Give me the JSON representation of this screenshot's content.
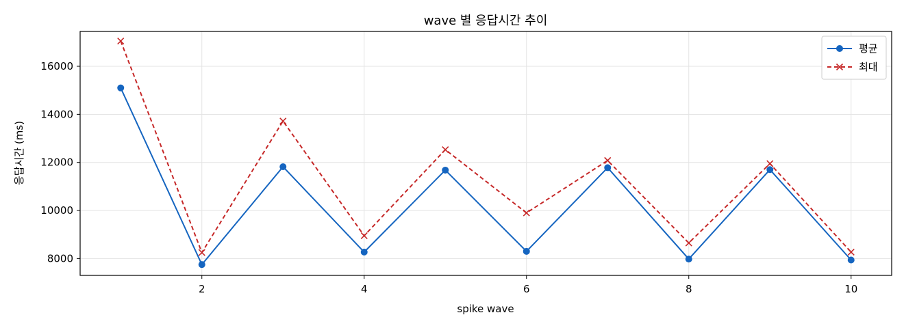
{
  "chart_data": {
    "type": "line",
    "title": "wave 별 응답시간 추이",
    "xlabel": "spike wave",
    "ylabel": "응답시간 (ms)",
    "x": [
      1,
      2,
      3,
      4,
      5,
      6,
      7,
      8,
      9,
      10
    ],
    "xlim": [
      0.5,
      10.5
    ],
    "ylim": [
      7300,
      17450
    ],
    "xticks": [
      2,
      4,
      6,
      8,
      10
    ],
    "yticks": [
      8000,
      10000,
      12000,
      14000,
      16000
    ],
    "grid": true,
    "legend_position": "top-right",
    "series": [
      {
        "name": "평균",
        "color": "#1565c0",
        "style": "solid",
        "marker": "circle",
        "values": [
          15100,
          7750,
          11820,
          8270,
          11680,
          8300,
          11780,
          7980,
          11700,
          7940
        ]
      },
      {
        "name": "최대",
        "color": "#c62828",
        "style": "dashed",
        "marker": "x",
        "values": [
          17050,
          8250,
          13720,
          8950,
          12530,
          9900,
          12080,
          8650,
          11950,
          8270
        ]
      }
    ]
  }
}
